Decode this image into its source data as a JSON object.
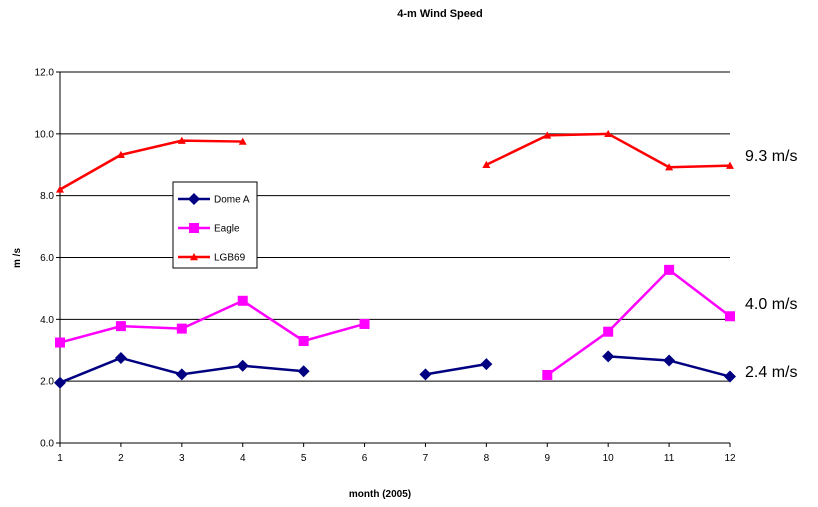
{
  "chart_data": {
    "type": "line",
    "title": "4-m  Wind Speed",
    "xlabel": "month (2005)",
    "ylabel": "m /s",
    "x": [
      1,
      2,
      3,
      4,
      5,
      6,
      7,
      8,
      9,
      10,
      11,
      12
    ],
    "xlim": [
      1,
      12
    ],
    "ylim": [
      0,
      12
    ],
    "yticks": [
      "0.0",
      "2.0",
      "4.0",
      "6.0",
      "8.0",
      "10.0",
      "12.0"
    ],
    "xticks": [
      "1",
      "2",
      "3",
      "4",
      "5",
      "6",
      "7",
      "8",
      "9",
      "10",
      "11",
      "12"
    ],
    "grid": true,
    "legend_position": "upper-left inside plot",
    "series": [
      {
        "name": "Dome A",
        "color": "#000080",
        "marker": "diamond",
        "values": [
          1.95,
          2.75,
          2.22,
          2.5,
          2.32,
          null,
          2.22,
          2.55,
          null,
          2.8,
          2.67,
          2.15
        ]
      },
      {
        "name": "Eagle",
        "color": "#ff00ff",
        "marker": "square",
        "values": [
          3.25,
          3.78,
          3.7,
          4.6,
          3.3,
          3.85,
          null,
          null,
          2.2,
          3.6,
          5.6,
          4.1
        ]
      },
      {
        "name": "LGB69",
        "color": "#ff0000",
        "marker": "triangle",
        "values": [
          8.2,
          9.32,
          9.78,
          9.75,
          null,
          null,
          null,
          9.0,
          9.95,
          10.0,
          8.92,
          8.97
        ]
      }
    ],
    "annotations": [
      {
        "text": "9.3 m/s",
        "y": 9.3
      },
      {
        "text": "4.0 m/s",
        "y": 4.0
      },
      {
        "text": "2.4 m/s",
        "y": 2.4
      }
    ]
  }
}
